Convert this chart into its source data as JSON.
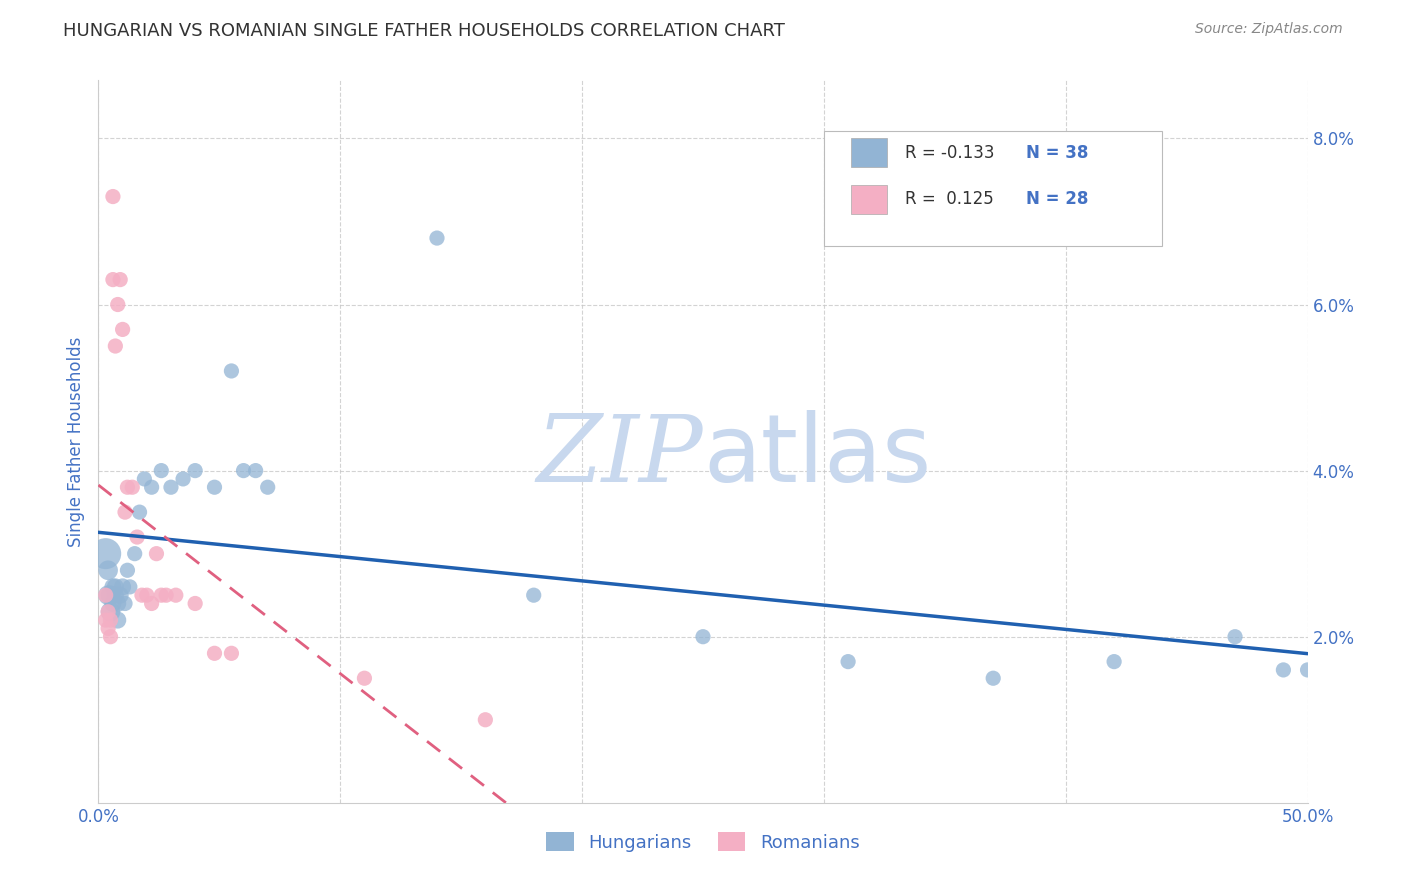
{
  "title": "HUNGARIAN VS ROMANIAN SINGLE FATHER HOUSEHOLDS CORRELATION CHART",
  "source": "Source: ZipAtlas.com",
  "ylabel": "Single Father Households",
  "legend_r1": "R = -0.133",
  "legend_n1": "N = 38",
  "legend_r2": "R =  0.125",
  "legend_n2": "N = 28",
  "bottom_legend": [
    "Hungarians",
    "Romanians"
  ],
  "watermark1": "ZIP",
  "watermark2": "atlas",
  "xlim": [
    0.0,
    0.5
  ],
  "ylim": [
    0.0,
    0.087
  ],
  "yticks": [
    0.02,
    0.04,
    0.06,
    0.08
  ],
  "ytick_labels": [
    "2.0%",
    "4.0%",
    "6.0%",
    "8.0%"
  ],
  "xticks": [
    0.0,
    0.1,
    0.2,
    0.3,
    0.4,
    0.5
  ],
  "xtick_labels": [
    "0.0%",
    "",
    "",
    "",
    "",
    "50.0%"
  ],
  "hungarian_x": [
    0.003,
    0.004,
    0.004,
    0.005,
    0.005,
    0.006,
    0.006,
    0.007,
    0.007,
    0.008,
    0.008,
    0.009,
    0.01,
    0.011,
    0.012,
    0.013,
    0.015,
    0.017,
    0.019,
    0.022,
    0.026,
    0.03,
    0.035,
    0.04,
    0.048,
    0.055,
    0.06,
    0.065,
    0.07,
    0.14,
    0.18,
    0.25,
    0.31,
    0.37,
    0.42,
    0.47,
    0.49,
    0.5
  ],
  "hungarian_y": [
    0.03,
    0.028,
    0.025,
    0.025,
    0.023,
    0.026,
    0.024,
    0.026,
    0.025,
    0.024,
    0.022,
    0.025,
    0.026,
    0.024,
    0.028,
    0.026,
    0.03,
    0.035,
    0.039,
    0.038,
    0.04,
    0.038,
    0.039,
    0.04,
    0.038,
    0.052,
    0.04,
    0.04,
    0.038,
    0.068,
    0.025,
    0.02,
    0.017,
    0.015,
    0.017,
    0.02,
    0.016,
    0.016
  ],
  "hungarian_size": [
    500,
    200,
    200,
    200,
    200,
    150,
    150,
    150,
    150,
    150,
    150,
    150,
    150,
    120,
    120,
    120,
    120,
    120,
    120,
    120,
    120,
    120,
    120,
    120,
    120,
    120,
    120,
    120,
    120,
    120,
    120,
    120,
    120,
    120,
    120,
    120,
    120,
    120
  ],
  "romanian_x": [
    0.003,
    0.003,
    0.004,
    0.004,
    0.005,
    0.005,
    0.006,
    0.006,
    0.007,
    0.008,
    0.009,
    0.01,
    0.011,
    0.012,
    0.014,
    0.016,
    0.018,
    0.02,
    0.022,
    0.024,
    0.026,
    0.028,
    0.032,
    0.04,
    0.048,
    0.055,
    0.11,
    0.16
  ],
  "romanian_y": [
    0.025,
    0.022,
    0.023,
    0.021,
    0.022,
    0.02,
    0.063,
    0.073,
    0.055,
    0.06,
    0.063,
    0.057,
    0.035,
    0.038,
    0.038,
    0.032,
    0.025,
    0.025,
    0.024,
    0.03,
    0.025,
    0.025,
    0.025,
    0.024,
    0.018,
    0.018,
    0.015,
    0.01
  ],
  "romanian_size": [
    120,
    120,
    120,
    120,
    120,
    120,
    120,
    120,
    120,
    120,
    120,
    120,
    120,
    120,
    120,
    120,
    120,
    120,
    120,
    120,
    120,
    120,
    120,
    120,
    120,
    120,
    120,
    120
  ],
  "hungarian_color": "#92b4d4",
  "romanian_color": "#f4afc4",
  "hungarian_line_color": "#2060b0",
  "romanian_line_color": "#e06080",
  "background_color": "#ffffff",
  "grid_color": "#c8c8c8",
  "title_color": "#333333",
  "axis_color": "#4472c4",
  "watermark_color": "#c8d8ee",
  "source_color": "#888888"
}
